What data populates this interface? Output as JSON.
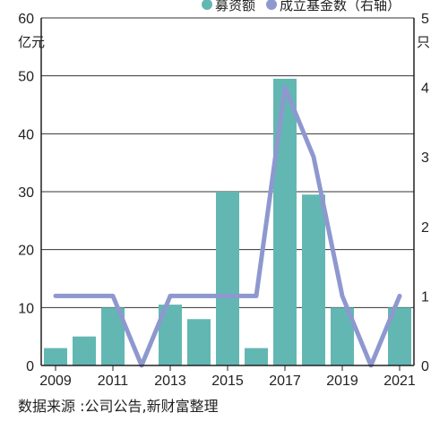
{
  "chart_data": {
    "type": "bar+line",
    "title": "",
    "categories": [
      "2009",
      "2010",
      "2011",
      "2012",
      "2013",
      "2014",
      "2015",
      "2016",
      "2017",
      "2018",
      "2019",
      "2020",
      "2021"
    ],
    "x_tick_labels": [
      "2009",
      "2011",
      "2013",
      "2015",
      "2017",
      "2019",
      "2021"
    ],
    "left_axis": {
      "unit": "亿元",
      "ylim": [
        0,
        60
      ],
      "ticks": [
        "0",
        "10",
        "20",
        "30",
        "40",
        "50",
        "60"
      ]
    },
    "right_axis": {
      "unit": "只",
      "ylim": [
        0,
        5
      ],
      "ticks": [
        "0",
        "1",
        "2",
        "3",
        "4",
        "5"
      ]
    },
    "grid": true,
    "legend_position": "top-right",
    "series": [
      {
        "name": "募资额",
        "type": "bar",
        "axis": "left",
        "color": "#63b7b2",
        "values": [
          3,
          5,
          10,
          0,
          10.5,
          8,
          30,
          3,
          49.5,
          29.5,
          10,
          0,
          10
        ]
      },
      {
        "name": "成立基金数（右轴）",
        "type": "line",
        "axis": "right",
        "color": "#8e98cf",
        "values": [
          1,
          1,
          1,
          0,
          1,
          1,
          1,
          1,
          4,
          3,
          1,
          0,
          1
        ]
      }
    ]
  },
  "source": "数据来源 :公司公告,新财富整理"
}
